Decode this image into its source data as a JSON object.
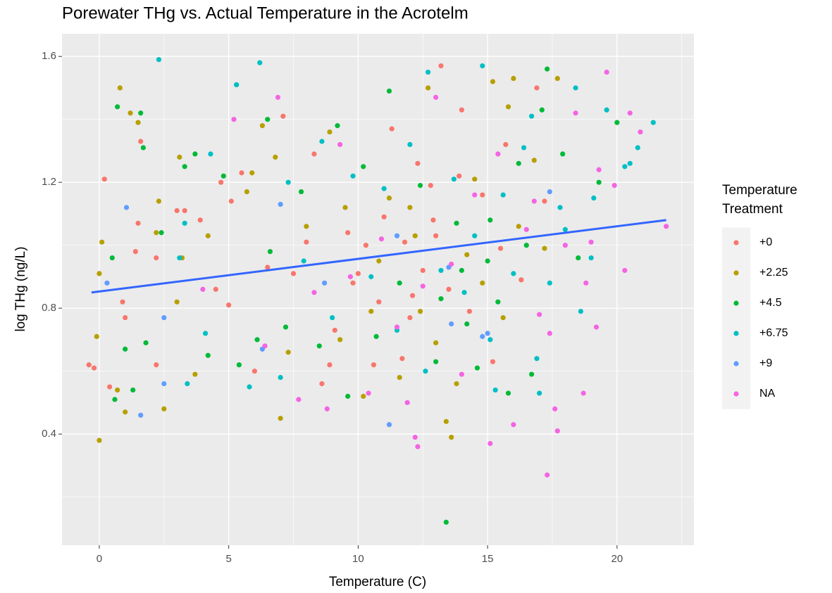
{
  "chart_data": {
    "type": "scatter",
    "title": "Porewater THg vs. Actual Temperature in the Acrotelm",
    "x_label": "Temperature (C)",
    "y_label": "log THg (ng/L)",
    "legend_title": [
      "Temperature",
      "Treatment"
    ],
    "xlim": [
      -1.44,
      22.97
    ],
    "ylim": [
      0.047,
      1.672
    ],
    "xticks": [
      0,
      5,
      10,
      15,
      20
    ],
    "yticks": [
      0.4,
      0.8,
      1.2,
      1.6
    ],
    "x_minor_grid": [
      2.5,
      7.5,
      12.5,
      17.5,
      22.5
    ],
    "y_minor_grid": [
      0.2,
      0.6,
      1.0,
      1.4
    ],
    "grid": true,
    "legend_position": "right",
    "series": [
      {
        "name": "+0",
        "color": "#F8766D",
        "x": [
          -0.4,
          -0.2,
          0.2,
          0.4,
          0.9,
          1.0,
          1.4,
          1.5,
          1.6,
          2.2,
          2.2,
          3.0,
          3.3,
          3.9,
          4.5,
          4.7,
          5.0,
          5.1,
          5.5,
          6.0,
          6.5,
          7.1,
          7.5,
          8.0,
          8.3,
          8.6,
          9.1,
          9.6,
          10.0,
          10.3,
          10.8,
          11.3,
          11.7,
          12.0,
          12.3,
          12.5,
          12.9,
          13.2,
          13.5,
          13.9,
          14.3,
          14.8,
          15.2,
          15.7,
          16.3,
          16.9,
          17.2,
          12.8,
          11.0,
          9.8,
          8.9,
          13.0,
          14.0,
          15.5,
          10.6,
          12.1,
          11.8
        ],
        "values": [
          0.62,
          0.61,
          1.21,
          0.55,
          0.82,
          0.77,
          0.98,
          1.07,
          1.33,
          0.62,
          0.96,
          1.11,
          1.11,
          1.08,
          0.86,
          1.2,
          0.81,
          1.14,
          1.23,
          0.6,
          0.93,
          1.41,
          0.91,
          1.01,
          1.29,
          0.56,
          0.73,
          1.04,
          0.91,
          1.0,
          0.82,
          1.37,
          0.64,
          0.77,
          1.26,
          0.92,
          1.08,
          1.57,
          0.86,
          1.22,
          0.79,
          1.16,
          0.63,
          1.32,
          0.89,
          1.5,
          1.14,
          1.19,
          1.09,
          0.88,
          0.62,
          1.03,
          1.43,
          0.99,
          0.62,
          0.84,
          1.01
        ]
      },
      {
        "name": "+2.25",
        "color": "#B79F00",
        "x": [
          0.0,
          0.1,
          0.0,
          -0.1,
          0.8,
          0.7,
          1.0,
          1.2,
          1.5,
          2.2,
          2.3,
          2.5,
          3.1,
          3.0,
          3.2,
          3.7,
          4.2,
          5.7,
          5.9,
          6.3,
          6.8,
          7.0,
          7.3,
          8.0,
          8.9,
          9.3,
          10.2,
          10.8,
          11.2,
          11.6,
          12.0,
          12.4,
          12.7,
          13.0,
          13.4,
          13.6,
          14.2,
          14.5,
          14.8,
          15.2,
          15.6,
          15.8,
          16.2,
          16.8,
          17.2,
          17.7,
          16.0,
          13.8,
          12.2,
          10.5,
          9.5
        ],
        "values": [
          0.38,
          1.01,
          0.91,
          0.71,
          1.5,
          0.54,
          0.47,
          1.42,
          1.39,
          1.04,
          1.14,
          0.48,
          1.28,
          0.82,
          0.96,
          0.59,
          1.03,
          1.17,
          1.23,
          1.38,
          1.28,
          0.45,
          0.66,
          1.06,
          1.36,
          0.7,
          0.52,
          0.95,
          1.15,
          0.58,
          1.12,
          0.79,
          1.5,
          0.69,
          0.44,
          0.39,
          0.97,
          1.21,
          0.88,
          1.52,
          0.77,
          1.44,
          1.06,
          1.27,
          0.99,
          1.53,
          1.53,
          0.56,
          1.03,
          0.79,
          1.12
        ]
      },
      {
        "name": "+4.5",
        "color": "#00BA38",
        "x": [
          0.6,
          0.5,
          0.7,
          1.0,
          1.3,
          1.6,
          1.7,
          1.8,
          2.4,
          3.3,
          3.7,
          4.2,
          4.8,
          5.3,
          5.4,
          6.1,
          6.5,
          6.6,
          7.2,
          7.8,
          8.5,
          9.2,
          9.6,
          10.2,
          10.7,
          11.2,
          11.6,
          12.4,
          13.0,
          13.4,
          13.8,
          14.2,
          14.6,
          15.1,
          15.4,
          15.8,
          16.2,
          16.7,
          17.1,
          17.3,
          17.9,
          18.5,
          19.3,
          20.0,
          14.0,
          15.0,
          16.5,
          13.2
        ],
        "values": [
          0.51,
          0.96,
          1.44,
          0.67,
          0.54,
          1.42,
          1.31,
          0.69,
          1.04,
          1.25,
          1.29,
          0.65,
          1.22,
          1.51,
          0.62,
          0.7,
          1.4,
          0.98,
          0.74,
          1.17,
          0.68,
          1.38,
          0.52,
          1.25,
          0.71,
          1.49,
          0.88,
          1.19,
          0.63,
          0.12,
          1.07,
          0.75,
          0.61,
          1.08,
          0.82,
          0.53,
          1.26,
          0.59,
          1.43,
          1.56,
          1.29,
          0.96,
          1.2,
          1.39,
          0.92,
          0.95,
          1.0,
          0.83
        ]
      },
      {
        "name": "+6.75",
        "color": "#00BFC4",
        "x": [
          2.3,
          3.1,
          3.3,
          3.4,
          4.3,
          4.1,
          5.3,
          5.8,
          6.2,
          7.0,
          7.3,
          7.9,
          8.6,
          9.0,
          9.8,
          10.5,
          11.0,
          11.5,
          12.0,
          12.6,
          12.7,
          13.2,
          13.7,
          14.1,
          14.8,
          15.1,
          15.6,
          16.0,
          16.4,
          16.9,
          17.4,
          17.8,
          18.4,
          18.6,
          19.1,
          19.6,
          20.3,
          20.8,
          21.4,
          17.0,
          15.3,
          14.5,
          18.0,
          19.0,
          16.7,
          20.5
        ],
        "values": [
          1.59,
          0.96,
          1.07,
          0.56,
          1.29,
          0.72,
          1.51,
          0.55,
          1.58,
          0.58,
          1.2,
          0.95,
          1.33,
          0.77,
          1.22,
          0.9,
          1.18,
          0.73,
          1.32,
          0.6,
          1.55,
          0.92,
          1.21,
          0.85,
          1.57,
          0.7,
          1.16,
          0.91,
          1.31,
          0.64,
          0.88,
          1.12,
          1.5,
          0.79,
          1.15,
          1.43,
          1.25,
          1.31,
          1.39,
          0.53,
          0.54,
          1.03,
          1.05,
          0.96,
          1.41,
          1.26
        ]
      },
      {
        "name": "+9",
        "color": "#619CFF",
        "x": [
          1.05,
          0.3,
          2.5,
          2.5,
          1.6,
          7.0,
          6.3,
          11.2,
          11.5,
          13.6,
          14.8,
          17.4,
          15.0,
          13.5,
          8.7
        ],
        "values": [
          1.12,
          0.88,
          0.77,
          0.56,
          0.46,
          1.13,
          0.67,
          0.43,
          1.03,
          0.75,
          0.71,
          1.17,
          0.72,
          0.93,
          0.88
        ]
      },
      {
        "name": "NA",
        "color": "#F564E3",
        "x": [
          4.0,
          5.2,
          6.4,
          6.9,
          7.7,
          8.3,
          8.8,
          9.3,
          9.7,
          10.4,
          10.9,
          11.5,
          11.9,
          12.2,
          12.3,
          12.5,
          13.0,
          13.6,
          14.0,
          14.5,
          15.1,
          15.4,
          16.0,
          16.5,
          17.0,
          17.3,
          17.6,
          17.7,
          18.0,
          18.4,
          18.7,
          19.0,
          19.2,
          19.6,
          19.9,
          20.3,
          20.9,
          21.9,
          20.5,
          18.8,
          16.8,
          17.4,
          19.3
        ],
        "values": [
          0.86,
          1.4,
          0.68,
          1.47,
          0.51,
          0.85,
          0.48,
          1.32,
          0.9,
          0.53,
          1.02,
          0.74,
          0.5,
          0.39,
          0.36,
          0.87,
          1.47,
          0.94,
          0.59,
          1.16,
          0.37,
          1.29,
          0.43,
          1.05,
          0.78,
          0.27,
          0.48,
          0.41,
          1.0,
          1.42,
          0.53,
          1.01,
          0.74,
          1.55,
          1.19,
          0.92,
          1.36,
          1.06,
          1.42,
          0.88,
          1.14,
          0.72,
          1.24
        ]
      }
    ],
    "trend": {
      "x": [
        -0.3,
        21.9
      ],
      "values": [
        0.85,
        1.08
      ],
      "color": "#3366FF"
    }
  }
}
